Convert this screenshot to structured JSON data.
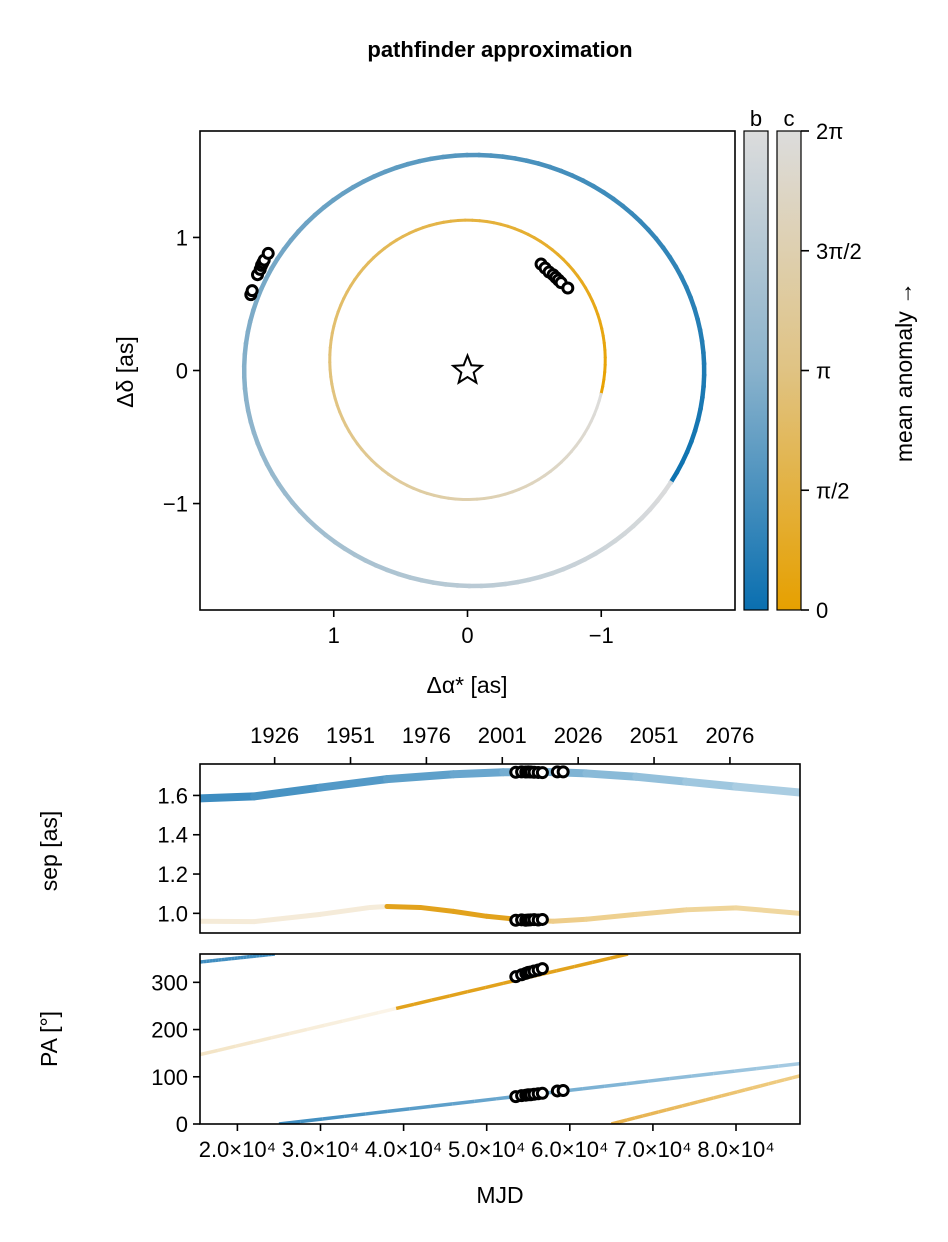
{
  "title": "pathfinder approximation",
  "colors": {
    "title": "#8B0000",
    "planet_b_start": "#0d72b0",
    "planet_b_end": "#dcdcdc",
    "planet_c_start": "#e8a202",
    "planet_c_end": "#dcdcdc",
    "marker_face": "#ffffff",
    "marker_edge": "#000000"
  },
  "chart_data": [
    {
      "type": "scatter",
      "name": "orbit-sky-plot",
      "xlabel": "Δα* [as]",
      "ylabel": "Δδ [as]",
      "xlim": [
        2.0,
        -2.0
      ],
      "ylim": [
        -1.8,
        1.8
      ],
      "xticks": [
        {
          "value": 1,
          "label": "1"
        },
        {
          "value": 0,
          "label": "0"
        },
        {
          "value": -1,
          "label": "−1"
        }
      ],
      "yticks": [
        {
          "value": 1,
          "label": "1"
        },
        {
          "value": 0,
          "label": "0"
        },
        {
          "value": -1,
          "label": "−1"
        }
      ],
      "grid": false,
      "star": {
        "x": 0,
        "y": 0,
        "icon": "star-outline-icon"
      },
      "orbits": [
        {
          "planet": "b",
          "center": [
            -0.05,
            0.0
          ],
          "radius_x": 1.72,
          "radius_y": 1.62
        },
        {
          "planet": "c",
          "center": [
            0.0,
            0.08
          ],
          "radius_x": 1.03,
          "radius_y": 1.05
        }
      ],
      "observations": [
        {
          "planet": "b",
          "points": [
            [
              1.62,
              0.57
            ],
            [
              1.61,
              0.6
            ],
            [
              1.57,
              0.72
            ],
            [
              1.55,
              0.76
            ],
            [
              1.54,
              0.79
            ],
            [
              1.53,
              0.81
            ],
            [
              1.52,
              0.83
            ],
            [
              1.49,
              0.88
            ]
          ]
        },
        {
          "planet": "c",
          "points": [
            [
              -0.55,
              0.8
            ],
            [
              -0.58,
              0.77
            ],
            [
              -0.61,
              0.74
            ],
            [
              -0.64,
              0.72
            ],
            [
              -0.66,
              0.7
            ],
            [
              -0.68,
              0.68
            ],
            [
              -0.7,
              0.66
            ],
            [
              -0.75,
              0.62
            ]
          ]
        }
      ]
    },
    {
      "type": "colorbar",
      "name": "mean-anomaly-colorbar",
      "columns": [
        "b",
        "c"
      ],
      "label": "mean anomaly →",
      "range": [
        0,
        6.2832
      ],
      "ticks": [
        "0",
        "π/2",
        "π",
        "3π/2",
        "2π"
      ]
    },
    {
      "type": "line",
      "name": "separation-plot",
      "ylabel": "sep [as]",
      "xlim": [
        15500,
        87700
      ],
      "ylim": [
        0.9,
        1.76
      ],
      "yticks": [
        {
          "value": 1.0,
          "label": "1.0"
        },
        {
          "value": 1.2,
          "label": "1.2"
        },
        {
          "value": 1.4,
          "label": "1.4"
        },
        {
          "value": 1.6,
          "label": "1.6"
        }
      ],
      "top_axis_ticks": [
        "1926",
        "1951",
        "1976",
        "2001",
        "2026",
        "2051",
        "2076"
      ],
      "top_axis_mjd": [
        24482,
        33613,
        42744,
        51875,
        61006,
        70137,
        79268
      ],
      "series": [
        {
          "planet": "b",
          "x": [
            15500,
            22000,
            30000,
            38000,
            46000,
            52000,
            57000,
            62000,
            68000,
            74000,
            80000,
            87700
          ],
          "y": [
            1.585,
            1.595,
            1.64,
            1.683,
            1.708,
            1.718,
            1.72,
            1.712,
            1.695,
            1.67,
            1.645,
            1.615
          ]
        },
        {
          "planet": "c",
          "x": [
            15500,
            22000,
            30000,
            36000,
            38000,
            42000,
            46000,
            50000,
            54000,
            58000,
            62000,
            68000,
            74000,
            80000,
            87700
          ],
          "y": [
            0.96,
            0.958,
            0.995,
            1.03,
            1.035,
            1.03,
            1.01,
            0.985,
            0.968,
            0.96,
            0.97,
            0.995,
            1.018,
            1.028,
            1.0
          ]
        }
      ],
      "observations": [
        {
          "planet": "b",
          "x": [
            53500,
            54200,
            54700,
            55000,
            55300,
            55700,
            56200,
            56700,
            58500,
            59200
          ],
          "y": [
            1.718,
            1.72,
            1.719,
            1.72,
            1.719,
            1.718,
            1.717,
            1.716,
            1.72,
            1.72
          ]
        },
        {
          "planet": "c",
          "x": [
            53500,
            54200,
            54700,
            55000,
            55300,
            55700,
            56200,
            56700
          ],
          "y": [
            0.965,
            0.967,
            0.965,
            0.966,
            0.967,
            0.968,
            0.966,
            0.969
          ]
        }
      ]
    },
    {
      "type": "line",
      "name": "position-angle-plot",
      "xlabel": "MJD",
      "ylabel": "PA [°]",
      "xlim": [
        15500,
        87700
      ],
      "ylim": [
        0,
        360
      ],
      "yticks": [
        {
          "value": 0,
          "label": "0"
        },
        {
          "value": 100,
          "label": "100"
        },
        {
          "value": 200,
          "label": "200"
        },
        {
          "value": 300,
          "label": "300"
        }
      ],
      "xticks": [
        {
          "value": 20000,
          "label": "2.0×10⁴"
        },
        {
          "value": 30000,
          "label": "3.0×10⁴"
        },
        {
          "value": 40000,
          "label": "4.0×10⁴"
        },
        {
          "value": 50000,
          "label": "5.0×10⁴"
        },
        {
          "value": 60000,
          "label": "6.0×10⁴"
        },
        {
          "value": 70000,
          "label": "7.0×10⁴"
        },
        {
          "value": 80000,
          "label": "8.0×10⁴"
        }
      ],
      "series": [
        {
          "planet": "b",
          "segments": [
            {
              "x": [
                15500,
                24500
              ],
              "y": [
                343,
                360
              ]
            },
            {
              "x": [
                25000,
                87700
              ],
              "y": [
                0,
                128
              ]
            }
          ]
        },
        {
          "planet": "c",
          "segments": [
            {
              "x": [
                15500,
                67000
              ],
              "y": [
                147,
                360
              ]
            },
            {
              "x": [
                65000,
                87700
              ],
              "y": [
                0,
                102
              ]
            }
          ]
        }
      ],
      "observations": [
        {
          "planet": "b",
          "x": [
            53500,
            54200,
            54700,
            55000,
            55300,
            55700,
            56200,
            56700,
            58500,
            59200
          ],
          "y": [
            58,
            60,
            61,
            62,
            62,
            63,
            64,
            65,
            70,
            71
          ]
        },
        {
          "planet": "c",
          "x": [
            53500,
            54200,
            54700,
            55000,
            55300,
            55700,
            56200,
            56700
          ],
          "y": [
            312,
            316,
            319,
            321,
            322,
            324,
            326,
            329
          ]
        }
      ]
    }
  ]
}
